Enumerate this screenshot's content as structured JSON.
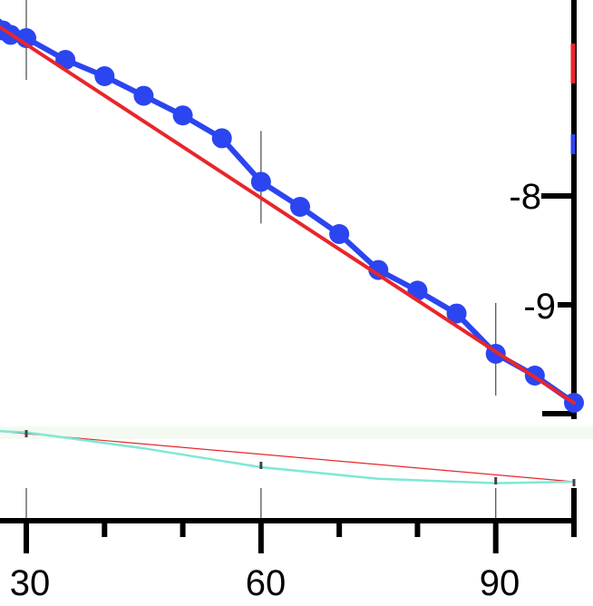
{
  "chart_data": {
    "type": "line",
    "title": "",
    "xlabel": "",
    "ylabel": "",
    "x_ticks": [
      "30",
      "60",
      "90"
    ],
    "y_ticks": [
      "-8",
      "-9"
    ],
    "xlim": [
      26.5,
      100
    ],
    "ylim": [
      -10.0,
      -6.15
    ],
    "series": [
      {
        "kind": "data",
        "color": "#2b45f0",
        "x": [
          26,
          27,
          28,
          30,
          35,
          40,
          45,
          50,
          55,
          60,
          65,
          70,
          75,
          80,
          85,
          90,
          95,
          100
        ],
        "y": [
          -6.45,
          -6.48,
          -6.52,
          -6.55,
          -6.75,
          -6.9,
          -7.08,
          -7.26,
          -7.47,
          -7.87,
          -8.1,
          -8.35,
          -8.68,
          -8.87,
          -9.08,
          -9.45,
          -9.65,
          -9.9
        ],
        "error_bars_at_x": [
          30,
          60,
          90
        ]
      },
      {
        "kind": "fit",
        "color": "#e8262b",
        "x": [
          26,
          100
        ],
        "y": [
          -6.42,
          -9.9
        ]
      }
    ],
    "bottom_panel": {
      "lines": [
        {
          "color": "#e8262b",
          "x": [
            26,
            100
          ],
          "y": [
            0.0,
            -0.35
          ]
        },
        {
          "color": "#7ee8d6",
          "x": [
            26,
            30,
            45,
            60,
            75,
            90,
            100
          ],
          "y": [
            0.0,
            -0.01,
            -0.12,
            -0.25,
            -0.33,
            -0.36,
            -0.35
          ]
        }
      ]
    }
  }
}
